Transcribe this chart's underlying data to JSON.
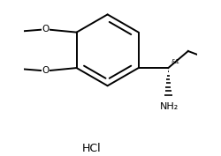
{
  "background_color": "#ffffff",
  "line_color": "#000000",
  "line_width": 1.4,
  "font_size_label": 7.5,
  "font_size_hcl": 9,
  "font_size_stereo": 5,
  "hcl_text": "HCl",
  "stereo_label": "&1",
  "nh2_label": "NH₂"
}
